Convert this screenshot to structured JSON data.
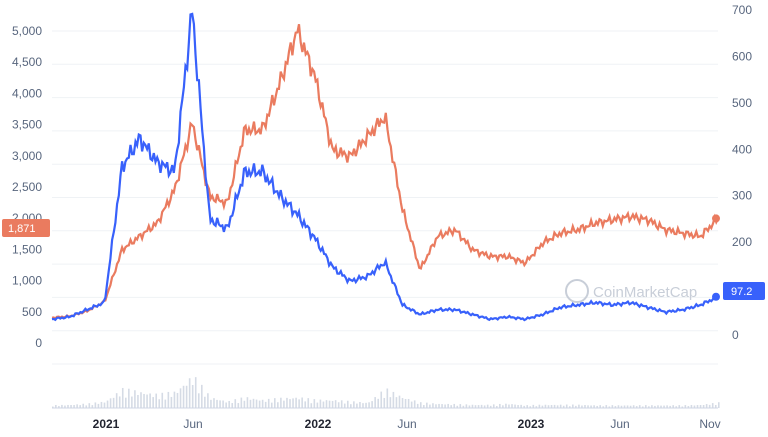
{
  "chart_data": {
    "type": "line",
    "y_left_ticks": [
      "5,000",
      "4,500",
      "4,000",
      "3,500",
      "3,000",
      "2,500",
      "2,000",
      "1,500",
      "1,000",
      "500",
      "0"
    ],
    "y_right_ticks": [
      "700",
      "600",
      "500",
      "400",
      "300",
      "200",
      "100",
      "0"
    ],
    "x_ticks": [
      {
        "label": "2021",
        "bold": true
      },
      {
        "label": "Jun",
        "bold": false
      },
      {
        "label": "2022",
        "bold": true
      },
      {
        "label": "Jun",
        "bold": false
      },
      {
        "label": "2023",
        "bold": true
      },
      {
        "label": "Jun",
        "bold": false
      },
      {
        "label": "Nov",
        "bold": false
      }
    ],
    "ylim_left": [
      0,
      5000
    ],
    "ylim_right": [
      0,
      700
    ],
    "x": [
      "2020-09",
      "2020-10",
      "2020-11",
      "2020-12",
      "2021-01",
      "2021-02",
      "2021-03",
      "2021-04",
      "2021-05",
      "2021-06",
      "2021-07",
      "2021-08",
      "2021-09",
      "2021-10",
      "2021-11",
      "2021-12",
      "2022-01",
      "2022-02",
      "2022-03",
      "2022-04",
      "2022-05",
      "2022-06",
      "2022-07",
      "2022-08",
      "2022-09",
      "2022-10",
      "2022-11",
      "2022-12",
      "2023-01",
      "2023-02",
      "2023-03",
      "2023-04",
      "2023-05",
      "2023-06",
      "2023-07",
      "2023-08",
      "2023-09",
      "2023-10",
      "2023-11"
    ],
    "series": [
      {
        "axis": "left",
        "color": "#ea7b5f",
        "current_label": "1,871",
        "values": [
          380,
          400,
          480,
          620,
          1400,
          1600,
          1800,
          2300,
          3300,
          2200,
          2100,
          3200,
          3200,
          3900,
          4700,
          4000,
          2900,
          2800,
          3100,
          3400,
          2000,
          1100,
          1600,
          1700,
          1400,
          1300,
          1300,
          1200,
          1500,
          1650,
          1700,
          1800,
          1850,
          1900,
          1850,
          1700,
          1650,
          1600,
          1871
        ]
      },
      {
        "axis": "right",
        "color": "#3861fb",
        "current_label": "97.2",
        "values": [
          50,
          55,
          70,
          85,
          370,
          430,
          380,
          360,
          700,
          260,
          240,
          360,
          360,
          310,
          270,
          220,
          160,
          130,
          140,
          170,
          80,
          60,
          70,
          70,
          60,
          50,
          55,
          50,
          60,
          75,
          80,
          85,
          80,
          85,
          75,
          65,
          70,
          80,
          97.2
        ]
      },
      {
        "type": "bar",
        "name_axis": "volume",
        "color": "#d5dbe5",
        "relative_values": [
          0.05,
          0.06,
          0.08,
          0.12,
          0.35,
          0.3,
          0.25,
          0.3,
          0.6,
          0.2,
          0.12,
          0.2,
          0.15,
          0.18,
          0.2,
          0.15,
          0.15,
          0.12,
          0.1,
          0.35,
          0.2,
          0.1,
          0.08,
          0.07,
          0.06,
          0.06,
          0.08,
          0.05,
          0.06,
          0.06,
          0.06,
          0.05,
          0.05,
          0.05,
          0.05,
          0.05,
          0.05,
          0.06,
          0.1
        ]
      }
    ],
    "watermark": "CoinMarketCap",
    "grid": true
  }
}
